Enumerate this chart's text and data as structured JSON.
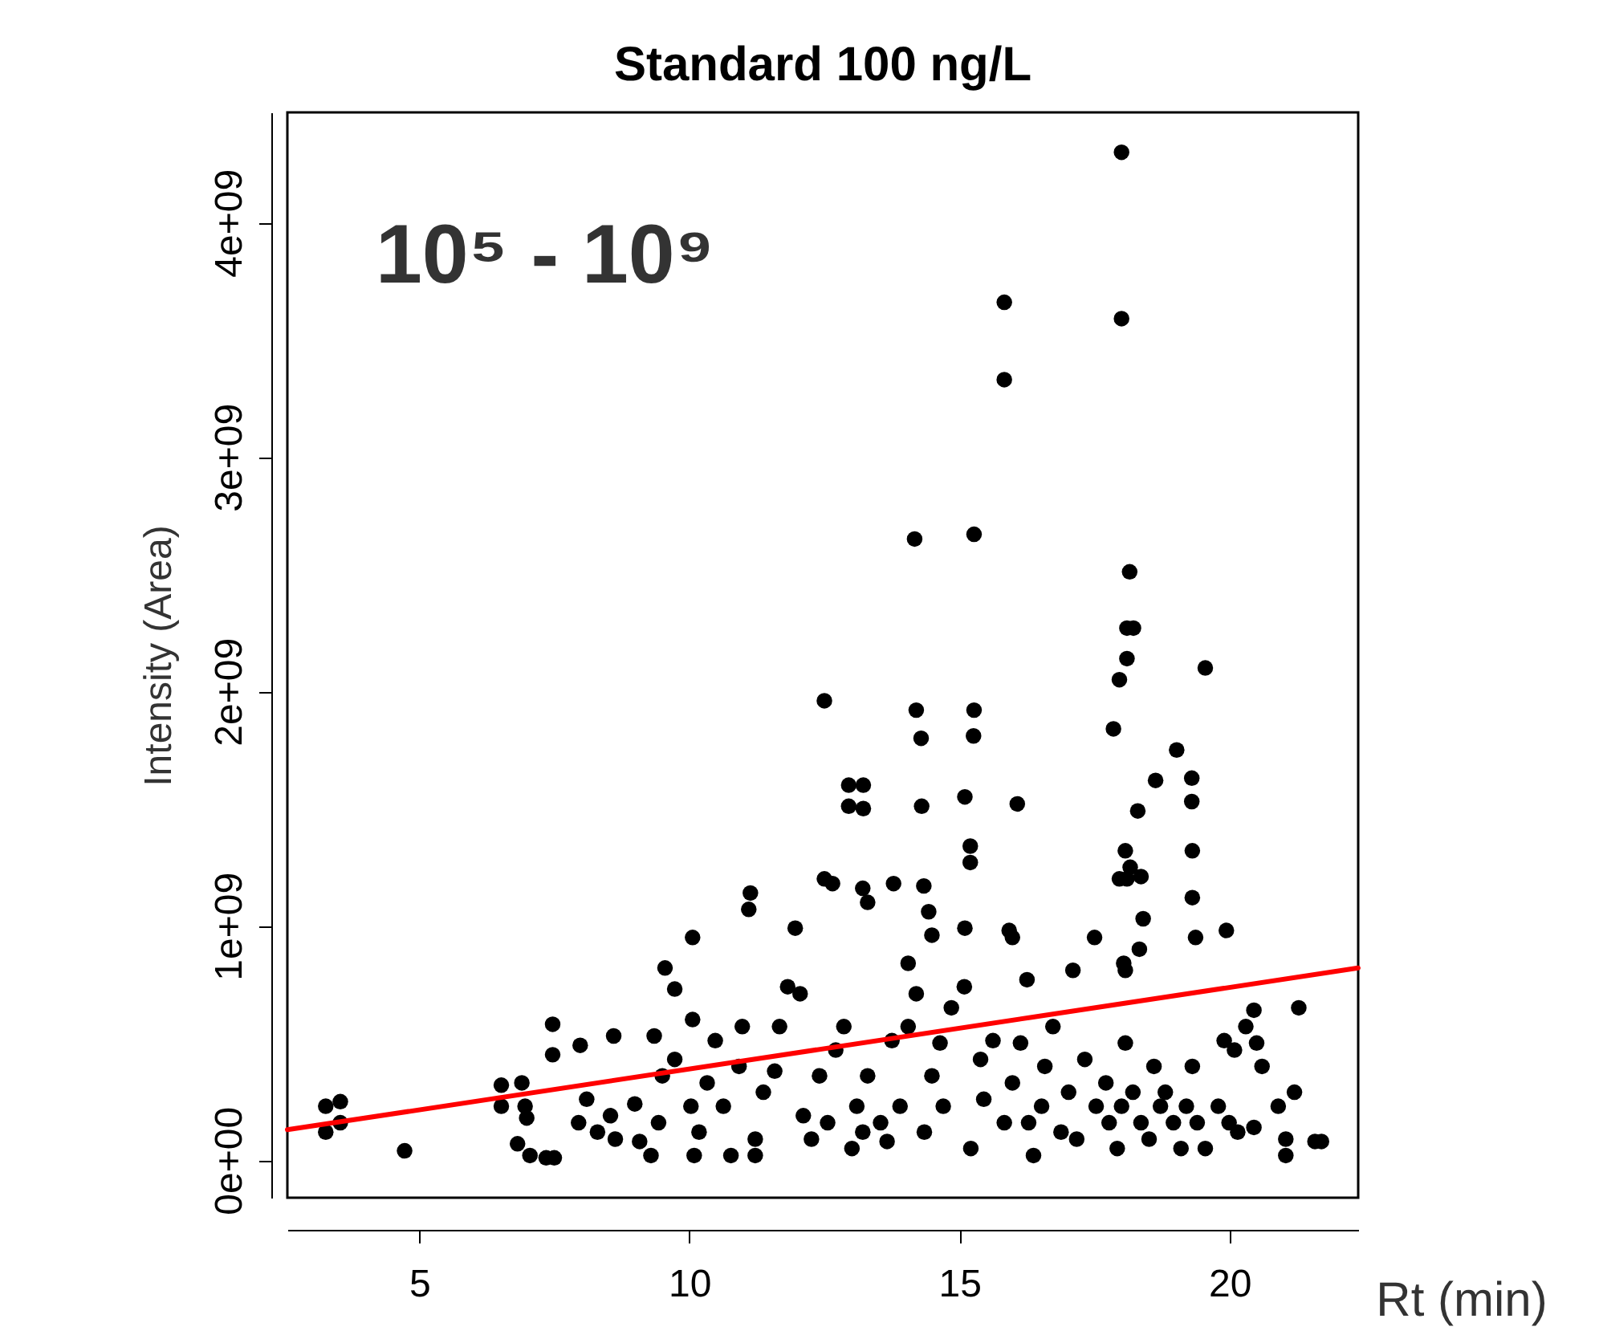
{
  "chart_data": {
    "type": "scatter",
    "title": "Standard 100 ng/L",
    "xlabel": "Rt (min)",
    "ylabel": "Intensity (Area)",
    "annotations": [
      "10⁵ - 10⁹"
    ],
    "xlim": [
      2.56,
      22.38
    ],
    "xticks": [
      5,
      10,
      15,
      20
    ],
    "ylim": [
      -160000000,
      4470000000
    ],
    "yticks": [
      {
        "value": 0,
        "label": "0e+00"
      },
      {
        "value": 1000000000,
        "label": "1e+09"
      },
      {
        "value": 2000000000,
        "label": "2e+09"
      },
      {
        "value": 3000000000,
        "label": "3e+09"
      },
      {
        "value": 4000000000,
        "label": "4e+09"
      }
    ],
    "grid": false,
    "marker": "circle",
    "series": [
      {
        "type": "scatter",
        "color": "#000000",
        "x": [
          18.0,
          18.0,
          15.83,
          15.83,
          14.17,
          15.27,
          18.15,
          18.1,
          18.22,
          18.1,
          19.55,
          12.5,
          14.2,
          15.27,
          17.96,
          17.85,
          14.29,
          15.26,
          12.95,
          13.22,
          12.95,
          13.22,
          14.3,
          15.1,
          16.07,
          18.63,
          19.02,
          19.3,
          19.3,
          18.3,
          18.07,
          18.16,
          18.36,
          15.2,
          15.2,
          17.96,
          18.1,
          19.31,
          19.31,
          19.37,
          19.94,
          11.13,
          11.1,
          12.5,
          12.65,
          11.96,
          13.21,
          13.3,
          13.78,
          14.34,
          14.43,
          14.49,
          15.1,
          15.92,
          15.98,
          16.25,
          17.1,
          17.5,
          18.07,
          18.04,
          18.33,
          18.4,
          3.27,
          3.54,
          3.27,
          3.54,
          4.73,
          6.52,
          6.52,
          6.9,
          6.96,
          6.99,
          6.82,
          7.05,
          7.35,
          7.5,
          7.47,
          7.47,
          7.98,
          8.6,
          9.55,
          9.73,
          10.06,
          10.06,
          9.35,
          7.95,
          8.1,
          8.3,
          8.54,
          8.63,
          8.99,
          9.08,
          9.29,
          9.43,
          9.5,
          9.73,
          10.03,
          10.18,
          10.09,
          10.33,
          10.48,
          10.63,
          10.77,
          10.92,
          10.98,
          11.22,
          11.37,
          11.22,
          11.58,
          11.67,
          11.82,
          12.05,
          12.11,
          12.26,
          12.41,
          12.56,
          12.71,
          12.86,
          13.01,
          13.1,
          13.21,
          13.3,
          13.54,
          13.66,
          13.75,
          13.9,
          14.05,
          14.05,
          14.2,
          14.35,
          14.49,
          14.64,
          14.7,
          14.85,
          15.09,
          15.21,
          15.39,
          15.45,
          15.62,
          15.83,
          15.98,
          16.13,
          16.28,
          16.37,
          16.52,
          16.58,
          16.73,
          16.88,
          17.02,
          17.17,
          17.32,
          17.53,
          17.71,
          17.77,
          17.92,
          18.0,
          18.07,
          18.21,
          18.36,
          18.51,
          18.6,
          18.72,
          18.81,
          18.96,
          19.1,
          19.2,
          19.31,
          19.4,
          19.55,
          19.79,
          19.9,
          19.99,
          20.09,
          20.15,
          20.3,
          20.45,
          20.5,
          20.6,
          20.45,
          20.9,
          21.04,
          21.04,
          21.2,
          21.58,
          21.7,
          21.28
        ],
        "values": [
          4300000000,
          3590000000,
          3660000000,
          3330000000,
          2650000000,
          2670000000,
          2510000000,
          2270000000,
          2270000000,
          2140000000,
          2100000000,
          1960000000,
          1920000000,
          1920000000,
          2050000000,
          1840000000,
          1800000000,
          1810000000,
          1600000000,
          1600000000,
          1510000000,
          1500000000,
          1510000000,
          1550000000,
          1520000000,
          1620000000,
          1750000000,
          1630000000,
          1530000000,
          1490000000,
          1320000000,
          1250000000,
          1210000000,
          1340000000,
          1270000000,
          1200000000,
          1200000000,
          1320000000,
          1120000000,
          950000000,
          980000000,
          1140000000,
          1070000000,
          1200000000,
          1180000000,
          990000000,
          1160000000,
          1100000000,
          1180000000,
          1170000000,
          1060000000,
          960000000,
          990000000,
          980000000,
          950000000,
          770000000,
          810000000,
          950000000,
          810000000,
          840000000,
          900000000,
          1030000000,
          230000000,
          250000000,
          120000000,
          160000000,
          40000000,
          320000000,
          230000000,
          330000000,
          230000000,
          180000000,
          70000000,
          20000000,
          10000000,
          10000000,
          580000000,
          450000000,
          490000000,
          530000000,
          820000000,
          730000000,
          600000000,
          950000000,
          530000000,
          160000000,
          260000000,
          120000000,
          190000000,
          90000000,
          240000000,
          80000000,
          20000000,
          160000000,
          360000000,
          430000000,
          230000000,
          120000000,
          20000000,
          330000000,
          510000000,
          230000000,
          20000000,
          400000000,
          570000000,
          90000000,
          290000000,
          20000000,
          380000000,
          570000000,
          740000000,
          710000000,
          190000000,
          90000000,
          360000000,
          160000000,
          470000000,
          570000000,
          50000000,
          230000000,
          120000000,
          360000000,
          160000000,
          80000000,
          510000000,
          230000000,
          570000000,
          840000000,
          710000000,
          120000000,
          360000000,
          500000000,
          230000000,
          650000000,
          740000000,
          50000000,
          430000000,
          260000000,
          510000000,
          160000000,
          330000000,
          500000000,
          160000000,
          20000000,
          230000000,
          400000000,
          570000000,
          120000000,
          290000000,
          90000000,
          430000000,
          230000000,
          330000000,
          160000000,
          50000000,
          230000000,
          500000000,
          290000000,
          160000000,
          90000000,
          400000000,
          230000000,
          290000000,
          160000000,
          50000000,
          230000000,
          400000000,
          160000000,
          50000000,
          230000000,
          510000000,
          160000000,
          470000000,
          120000000,
          570000000,
          640000000,
          500000000,
          400000000,
          140000000,
          230000000,
          90000000,
          20000000,
          290000000,
          80000000,
          80000000,
          650000000
        ]
      },
      {
        "type": "line",
        "marker": "none",
        "line_style": "solid",
        "color": "#ff0000",
        "x": [
          2.56,
          22.38
        ],
        "values": [
          130000000,
          820000000
        ]
      }
    ]
  }
}
